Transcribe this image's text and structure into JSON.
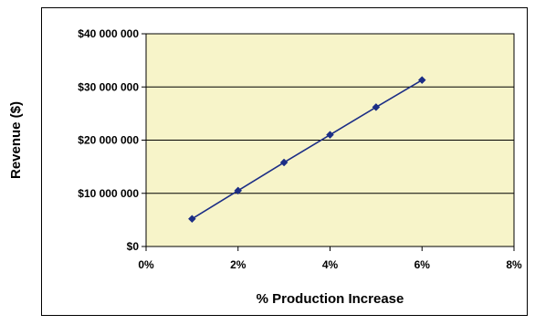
{
  "chart_data": {
    "type": "line",
    "xlabel": "% Production Increase",
    "ylabel": "Revenue ($)",
    "xlim": [
      0,
      8
    ],
    "ylim": [
      0,
      40000000
    ],
    "x_ticks": [
      {
        "value": 0,
        "label": "0%"
      },
      {
        "value": 2,
        "label": "2%"
      },
      {
        "value": 4,
        "label": "4%"
      },
      {
        "value": 6,
        "label": "6%"
      },
      {
        "value": 8,
        "label": "8%"
      }
    ],
    "y_ticks": [
      {
        "value": 0,
        "label": "$0"
      },
      {
        "value": 10000000,
        "label": "$10 000 000"
      },
      {
        "value": 20000000,
        "label": "$20 000 000"
      },
      {
        "value": 30000000,
        "label": "$30 000 000"
      },
      {
        "value": 40000000,
        "label": "$40 000 000"
      }
    ],
    "grid": "horizontal",
    "series": [
      {
        "x": [
          1,
          2,
          3,
          4,
          5,
          6
        ],
        "y": [
          5200000,
          10500000,
          15800000,
          21000000,
          26200000,
          31300000
        ]
      }
    ],
    "colors": {
      "plot_background": "#f7f4c9",
      "line": "#1c2e86",
      "marker": "#1c2e86",
      "gridline": "#000000",
      "axis": "#000000"
    },
    "marker_shape": "diamond",
    "legend": "none"
  }
}
